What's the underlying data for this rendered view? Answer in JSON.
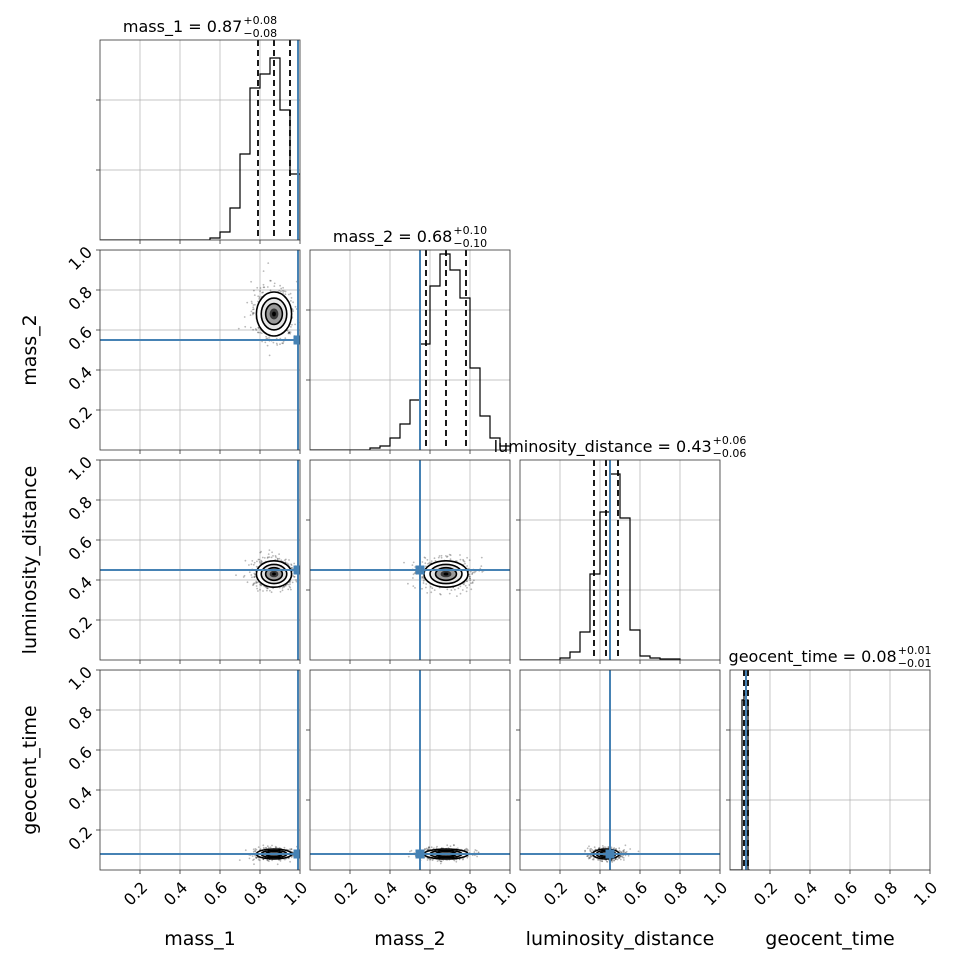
{
  "chart_data": {
    "type": "corner",
    "parameters": [
      "mass_1",
      "mass_2",
      "luminosity_distance",
      "geocent_time"
    ],
    "axis_range": [
      0,
      1
    ],
    "tick_values": [
      0.2,
      0.4,
      0.6,
      0.8,
      1.0
    ],
    "tick_labels": [
      "0.2",
      "0.4",
      "0.6",
      "0.8",
      "1.0"
    ],
    "grid": true,
    "truth_color": "#4682b4",
    "truths": {
      "mass_1": 0.99,
      "mass_2": 0.55,
      "luminosity_distance": 0.45,
      "geocent_time": 0.08
    },
    "titles": [
      {
        "param": "mass_1",
        "text": "mass_1 = 0.87",
        "plus": "+0.08",
        "minus": "−0.08"
      },
      {
        "param": "mass_2",
        "text": "mass_2 = 0.68",
        "plus": "+0.10",
        "minus": "−0.10"
      },
      {
        "param": "luminosity_distance",
        "text": "luminosity_distance = 0.43",
        "plus": "+0.06",
        "minus": "−0.06"
      },
      {
        "param": "geocent_time",
        "text": "geocent_time = 0.08",
        "plus": "+0.01",
        "minus": "−0.01"
      }
    ],
    "marginals": {
      "mass_1": {
        "bin_edges": [
          0.55,
          0.6,
          0.65,
          0.7,
          0.75,
          0.8,
          0.85,
          0.9,
          0.95,
          1.0
        ],
        "counts": [
          0.01,
          0.04,
          0.16,
          0.43,
          0.76,
          0.83,
          0.91,
          0.65,
          0.33
        ],
        "quantiles": [
          0.79,
          0.87,
          0.95
        ]
      },
      "mass_2": {
        "bin_edges": [
          0.3,
          0.35,
          0.4,
          0.45,
          0.5,
          0.55,
          0.6,
          0.65,
          0.7,
          0.75,
          0.8,
          0.85,
          0.9,
          0.95,
          1.0
        ],
        "counts": [
          0.01,
          0.02,
          0.06,
          0.13,
          0.25,
          0.53,
          0.82,
          0.98,
          0.9,
          0.76,
          0.41,
          0.17,
          0.06,
          0.02
        ],
        "quantiles": [
          0.58,
          0.68,
          0.78
        ]
      },
      "luminosity_distance": {
        "bin_edges": [
          0.2,
          0.25,
          0.3,
          0.35,
          0.4,
          0.45,
          0.5,
          0.55,
          0.6,
          0.65,
          0.7,
          0.75,
          0.8
        ],
        "counts": [
          0.01,
          0.04,
          0.14,
          0.43,
          0.74,
          0.93,
          0.71,
          0.15,
          0.02,
          0.01,
          0.005,
          0.005
        ],
        "quantiles": [
          0.37,
          0.43,
          0.49
        ]
      },
      "geocent_time": {
        "bin_edges": [
          0.05,
          0.06,
          0.07,
          0.08,
          0.09,
          0.1
        ],
        "counts": [
          0.0,
          0.85,
          0.88,
          0.85,
          0.0
        ],
        "quantiles": [
          0.07,
          0.08,
          0.09
        ]
      }
    },
    "joint_centers": {
      "mass_1|mass_2": {
        "x": 0.87,
        "y": 0.68,
        "sx": 0.08,
        "sy": 0.1
      },
      "mass_1|luminosity_distance": {
        "x": 0.87,
        "y": 0.43,
        "sx": 0.08,
        "sy": 0.06
      },
      "mass_2|luminosity_distance": {
        "x": 0.68,
        "y": 0.43,
        "sx": 0.1,
        "sy": 0.06
      },
      "mass_1|geocent_time": {
        "x": 0.87,
        "y": 0.08,
        "sx": 0.08,
        "sy": 0.01
      },
      "mass_2|geocent_time": {
        "x": 0.68,
        "y": 0.08,
        "sx": 0.1,
        "sy": 0.01
      },
      "luminosity_distance|geocent_time": {
        "x": 0.43,
        "y": 0.08,
        "sx": 0.06,
        "sy": 0.01
      }
    }
  }
}
